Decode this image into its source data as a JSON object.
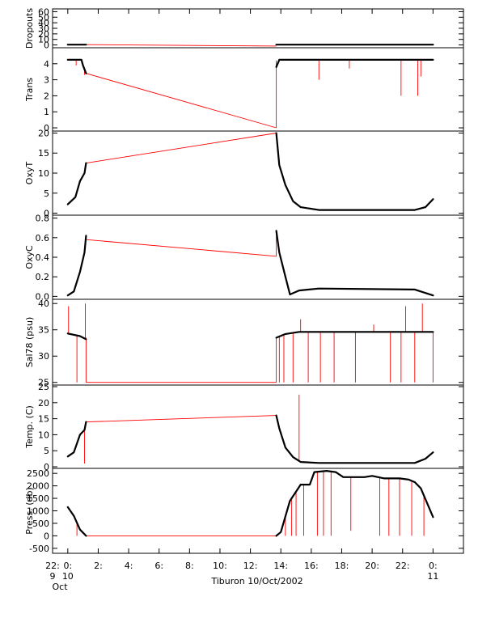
{
  "chart_data": {
    "type": "line",
    "title": "Tiburon 10/Oct/2002",
    "x_unit": "hour",
    "x_range": [
      -1,
      26
    ],
    "x_ticks": [
      {
        "x": -1,
        "label": "22:",
        "sub1": "9",
        "sub2": "Oct"
      },
      {
        "x": 0,
        "label": "0:",
        "sub1": "10",
        "sub2": ""
      },
      {
        "x": 2,
        "label": "2:",
        "sub1": "",
        "sub2": ""
      },
      {
        "x": 4,
        "label": "4:",
        "sub1": "",
        "sub2": ""
      },
      {
        "x": 6,
        "label": "6:",
        "sub1": "",
        "sub2": ""
      },
      {
        "x": 8,
        "label": "8:",
        "sub1": "",
        "sub2": ""
      },
      {
        "x": 10,
        "label": "10:",
        "sub1": "",
        "sub2": ""
      },
      {
        "x": 12,
        "label": "12:",
        "sub1": "",
        "sub2": ""
      },
      {
        "x": 14,
        "label": "14:",
        "sub1": "",
        "sub2": ""
      },
      {
        "x": 16,
        "label": "16:",
        "sub1": "",
        "sub2": ""
      },
      {
        "x": 18,
        "label": "18:",
        "sub1": "",
        "sub2": ""
      },
      {
        "x": 20,
        "label": "20:",
        "sub1": "",
        "sub2": ""
      },
      {
        "x": 22,
        "label": "22:",
        "sub1": "",
        "sub2": ""
      },
      {
        "x": 24,
        "label": "0:",
        "sub1": "11",
        "sub2": ""
      }
    ],
    "panels": [
      {
        "name": "Dropouts",
        "ylabel": "Dropouts",
        "ylim": [
          -5,
          65
        ],
        "yticks": [
          0,
          10,
          20,
          30,
          40,
          50,
          60
        ],
        "red_lines": [
          [
            [
              1.2,
              0.5
            ],
            [
              13.7,
              -2
            ]
          ]
        ],
        "spikes": [],
        "black": [
          [
            [
              0,
              0.5
            ],
            [
              1.2,
              0.5
            ]
          ],
          [
            [
              13.7,
              0.5
            ],
            [
              24,
              0.5
            ]
          ]
        ]
      },
      {
        "name": "Trans",
        "ylabel": "Trans",
        "ylim": [
          -0.2,
          5.0
        ],
        "yticks": [
          0,
          1,
          2,
          3,
          4
        ],
        "red_lines": [
          [
            [
              1.2,
              3.4
            ],
            [
              13.7,
              0.0
            ]
          ],
          [
            [
              13.7,
              0.0
            ],
            [
              13.7,
              4.2
            ]
          ]
        ],
        "spikes": [
          [
            0.55,
            3.9
          ],
          [
            1.1,
            3.3
          ],
          [
            16.5,
            3.0
          ],
          [
            18.5,
            3.7
          ],
          [
            21.9,
            2.0
          ],
          [
            23.0,
            2.0
          ],
          [
            23.2,
            3.2
          ]
        ],
        "black": [
          [
            [
              0,
              4.25
            ],
            [
              0.9,
              4.25
            ],
            [
              1.0,
              3.9
            ],
            [
              1.2,
              3.4
            ]
          ],
          [
            [
              13.7,
              3.8
            ],
            [
              13.9,
              4.25
            ],
            [
              24,
              4.25
            ]
          ]
        ]
      },
      {
        "name": "OxyT",
        "ylabel": "OxyT",
        "ylim": [
          -0.5,
          20.5
        ],
        "yticks": [
          0,
          5,
          10,
          15,
          20
        ],
        "red_lines": [
          [
            [
              1.2,
              12.5
            ],
            [
              13.7,
              20.0
            ]
          ]
        ],
        "spikes": [],
        "black": [
          [
            [
              0,
              2.2
            ],
            [
              0.5,
              4.0
            ],
            [
              0.8,
              8.0
            ],
            [
              1.1,
              10.0
            ],
            [
              1.2,
              12.5
            ]
          ],
          [
            [
              13.7,
              20.0
            ],
            [
              13.9,
              12.0
            ],
            [
              14.3,
              7.0
            ],
            [
              14.8,
              3.0
            ],
            [
              15.3,
              1.5
            ],
            [
              16.5,
              0.8
            ],
            [
              22.8,
              0.8
            ],
            [
              23.5,
              1.5
            ],
            [
              24,
              3.5
            ]
          ]
        ]
      },
      {
        "name": "OxyC",
        "ylabel": "OxyC",
        "ylim": [
          -0.03,
          0.83
        ],
        "yticks": [
          0.0,
          0.2,
          0.4,
          0.6,
          0.8
        ],
        "red_lines": [
          [
            [
              1.2,
              0.58
            ],
            [
              13.7,
              0.41
            ]
          ],
          [
            [
              13.7,
              0.41
            ],
            [
              13.7,
              0.67
            ]
          ]
        ],
        "spikes": [],
        "black": [
          [
            [
              0,
              0.01
            ],
            [
              0.4,
              0.05
            ],
            [
              0.8,
              0.25
            ],
            [
              1.1,
              0.45
            ],
            [
              1.2,
              0.62
            ]
          ],
          [
            [
              13.7,
              0.67
            ],
            [
              13.9,
              0.45
            ],
            [
              14.3,
              0.2
            ],
            [
              14.6,
              0.02
            ],
            [
              15.2,
              0.06
            ],
            [
              16.5,
              0.08
            ],
            [
              22.8,
              0.07
            ],
            [
              24,
              0.01
            ]
          ]
        ]
      },
      {
        "name": "Sal78",
        "ylabel": "Sal78 (psu)",
        "ylim": [
          24.5,
          40.8
        ],
        "yticks": [
          25,
          30,
          35,
          40
        ],
        "red_lines": [
          [
            [
              1.2,
              25.0
            ],
            [
              13.7,
              25.0
            ]
          ],
          [
            [
              1.2,
              25.0
            ],
            [
              1.2,
              33.5
            ]
          ],
          [
            [
              13.7,
              25.0
            ],
            [
              13.7,
              33.5
            ]
          ]
        ],
        "spikes": [
          [
            0.05,
            39.5
          ],
          [
            0.6,
            25.0
          ],
          [
            1.15,
            40.0
          ],
          [
            13.9,
            25.0
          ],
          [
            14.2,
            25.0
          ],
          [
            14.8,
            25.0
          ],
          [
            15.3,
            37.0
          ],
          [
            15.8,
            25.0
          ],
          [
            16.6,
            25.0
          ],
          [
            17.5,
            25.0
          ],
          [
            18.9,
            25.0
          ],
          [
            20.1,
            36.0
          ],
          [
            21.2,
            25.0
          ],
          [
            21.9,
            25.0
          ],
          [
            22.2,
            39.5
          ],
          [
            22.8,
            25.0
          ],
          [
            23.3,
            40.0
          ],
          [
            24,
            25.0
          ]
        ],
        "black": [
          [
            [
              0,
              34.3
            ],
            [
              0.8,
              33.8
            ],
            [
              1.2,
              33.2
            ]
          ],
          [
            [
              13.7,
              33.5
            ],
            [
              14.3,
              34.2
            ],
            [
              15.2,
              34.6
            ],
            [
              24,
              34.6
            ]
          ]
        ]
      },
      {
        "name": "Temp",
        "ylabel": "Temp. (C)",
        "ylim": [
          -0.5,
          25.5
        ],
        "yticks": [
          0,
          5,
          10,
          15,
          20,
          25
        ],
        "red_lines": [
          [
            [
              1.2,
              14.0
            ],
            [
              13.7,
              16.0
            ]
          ]
        ],
        "spikes": [
          [
            1.1,
            1.0
          ],
          [
            15.2,
            22.5
          ]
        ],
        "black": [
          [
            [
              0,
              3.2
            ],
            [
              0.4,
              4.5
            ],
            [
              0.8,
              10.0
            ],
            [
              1.1,
              11.5
            ],
            [
              1.2,
              14.0
            ]
          ],
          [
            [
              13.7,
              16.0
            ],
            [
              13.9,
              12.0
            ],
            [
              14.3,
              6.0
            ],
            [
              14.8,
              3.0
            ],
            [
              15.3,
              1.5
            ],
            [
              16.5,
              1.2
            ],
            [
              22.8,
              1.2
            ],
            [
              23.5,
              2.5
            ],
            [
              24,
              4.5
            ]
          ]
        ]
      },
      {
        "name": "Press",
        "ylabel": "Press. (db)",
        "ylim": [
          -700,
          2700
        ],
        "yticks": [
          -500,
          0,
          500,
          1000,
          1500,
          2000,
          2500
        ],
        "red_lines": [
          [
            [
              1.2,
              0
            ],
            [
              13.7,
              0
            ]
          ]
        ],
        "spikes": [
          [
            0.6,
            0
          ],
          [
            14.3,
            0
          ],
          [
            14.7,
            0
          ],
          [
            15.0,
            0
          ],
          [
            15.5,
            0
          ],
          [
            16.4,
            0
          ],
          [
            16.8,
            0
          ],
          [
            17.3,
            0
          ],
          [
            18.6,
            200
          ],
          [
            20.5,
            0
          ],
          [
            21.1,
            0
          ],
          [
            21.8,
            0
          ],
          [
            22.6,
            0
          ],
          [
            23.4,
            0
          ]
        ],
        "black": [
          [
            [
              0,
              1150
            ],
            [
              0.4,
              800
            ],
            [
              0.8,
              250
            ],
            [
              1.2,
              0
            ]
          ],
          [
            [
              13.7,
              0
            ],
            [
              14.0,
              150
            ],
            [
              14.6,
              1400
            ],
            [
              15.3,
              2050
            ],
            [
              15.9,
              2050
            ],
            [
              16.2,
              2550
            ],
            [
              17.0,
              2600
            ],
            [
              17.6,
              2550
            ],
            [
              18.1,
              2350
            ],
            [
              19.5,
              2350
            ],
            [
              20.0,
              2400
            ],
            [
              20.8,
              2300
            ],
            [
              21.8,
              2300
            ],
            [
              22.4,
              2250
            ],
            [
              22.8,
              2150
            ],
            [
              23.2,
              1900
            ],
            [
              24,
              750
            ]
          ]
        ]
      }
    ]
  }
}
